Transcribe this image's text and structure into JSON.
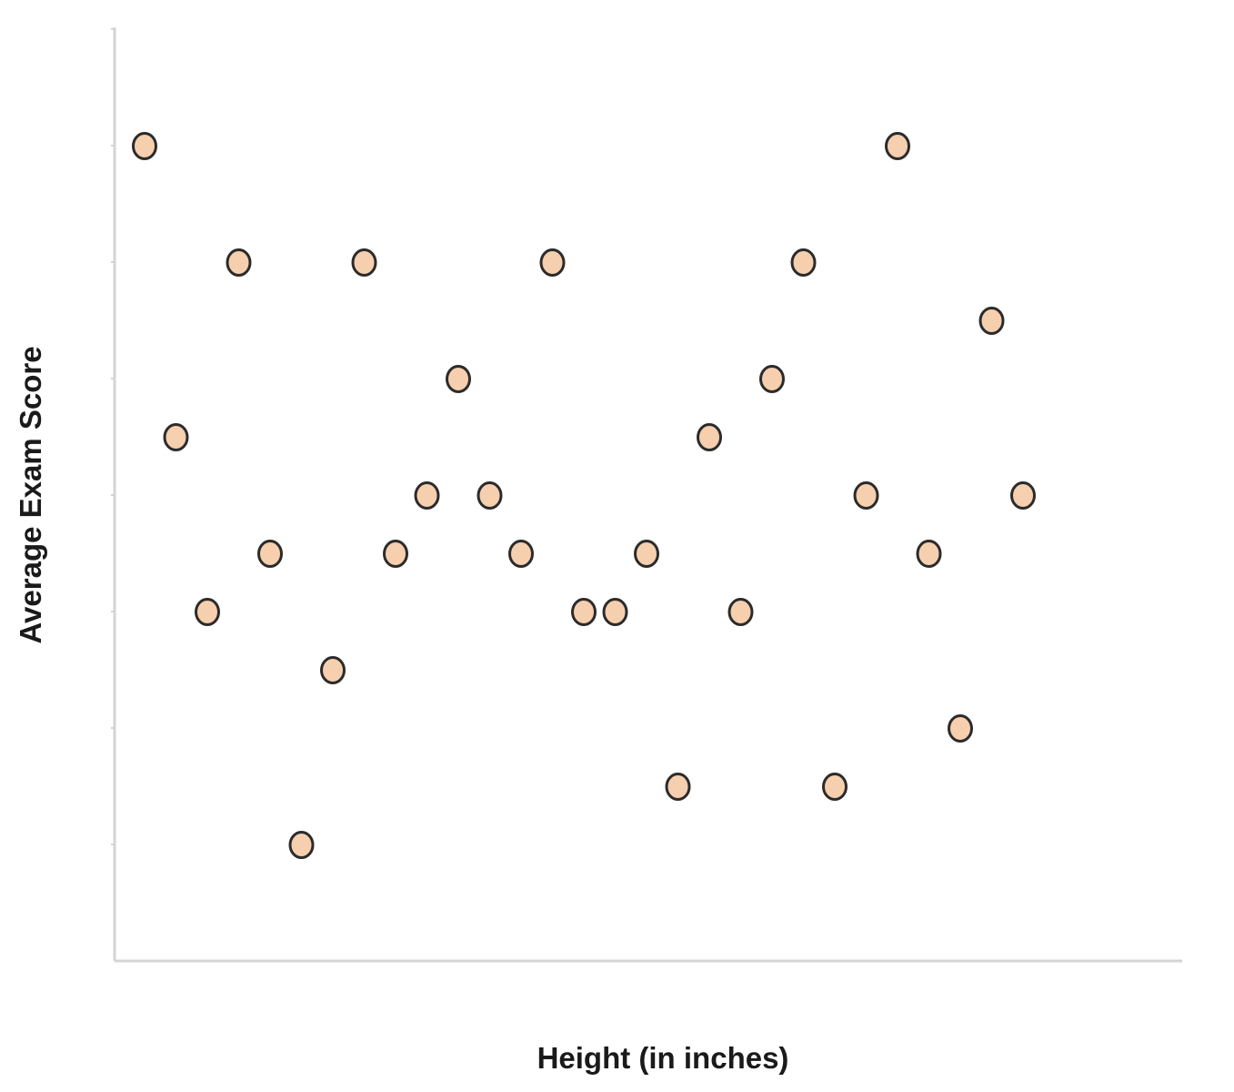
{
  "chart_data": {
    "type": "scatter",
    "title": "",
    "xlabel": "Height (in inches)",
    "ylabel": "Average Exam Score",
    "grid": false,
    "x_ticks_labeled": false,
    "y_ticks_labeled": false,
    "xlim": [
      0,
      34
    ],
    "ylim": [
      0,
      8
    ],
    "point_color": "#f6cfae",
    "point_edge_color": "#2b2b2b",
    "axis_color": "#d4d4d4",
    "points": [
      {
        "x": 1,
        "y": 7
      },
      {
        "x": 2,
        "y": 4.5
      },
      {
        "x": 3,
        "y": 3
      },
      {
        "x": 4,
        "y": 6
      },
      {
        "x": 5,
        "y": 3.5
      },
      {
        "x": 6,
        "y": 1
      },
      {
        "x": 7,
        "y": 2.5
      },
      {
        "x": 8,
        "y": 6
      },
      {
        "x": 9,
        "y": 3.5
      },
      {
        "x": 10,
        "y": 4
      },
      {
        "x": 11,
        "y": 5
      },
      {
        "x": 12,
        "y": 4
      },
      {
        "x": 13,
        "y": 3.5
      },
      {
        "x": 14,
        "y": 6
      },
      {
        "x": 15,
        "y": 3
      },
      {
        "x": 16,
        "y": 3
      },
      {
        "x": 17,
        "y": 3.5
      },
      {
        "x": 18,
        "y": 1.5
      },
      {
        "x": 19,
        "y": 4.5
      },
      {
        "x": 20,
        "y": 3
      },
      {
        "x": 21,
        "y": 5
      },
      {
        "x": 22,
        "y": 6
      },
      {
        "x": 23,
        "y": 1.5
      },
      {
        "x": 24,
        "y": 4
      },
      {
        "x": 25,
        "y": 7
      },
      {
        "x": 26,
        "y": 3.5
      },
      {
        "x": 27,
        "y": 2
      },
      {
        "x": 28,
        "y": 5.5
      },
      {
        "x": 29,
        "y": 4
      }
    ]
  }
}
